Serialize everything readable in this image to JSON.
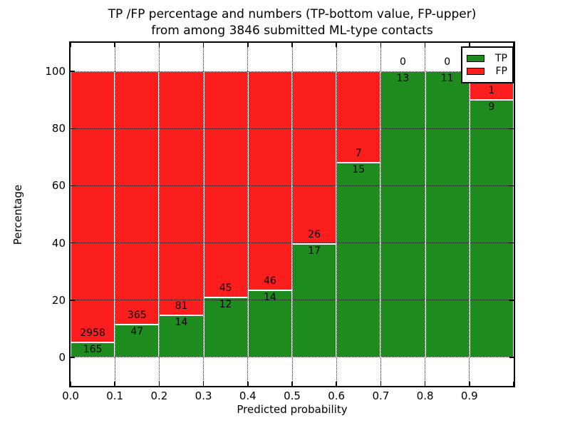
{
  "title_line1": "TP /FP percentage and numbers (TP-bottom value, FP-upper)",
  "title_line2": "from among 3846 submitted ML-type contacts",
  "legend": {
    "items": [
      {
        "label": "TP",
        "color": "#1e8b1e"
      },
      {
        "label": "FP",
        "color": "#fc1d1d"
      }
    ]
  },
  "chart_data": {
    "type": "bar",
    "subtype": "stacked-percentage",
    "title": "TP /FP percentage and numbers (TP-bottom value, FP-upper) from among 3846 submitted ML-type contacts",
    "xlabel": "Predicted probability",
    "ylabel": "Percentage",
    "xlim": [
      0.0,
      1.0
    ],
    "ylim": [
      -10,
      110
    ],
    "grid": true,
    "legend_position": "upper right",
    "bin_width": 0.1,
    "categories": [
      "0.0-0.1",
      "0.1-0.2",
      "0.2-0.3",
      "0.3-0.4",
      "0.4-0.5",
      "0.5-0.6",
      "0.6-0.7",
      "0.7-0.8",
      "0.8-0.9",
      "0.9-1.0"
    ],
    "bin_starts": [
      0.0,
      0.1,
      0.2,
      0.3,
      0.4,
      0.5,
      0.6,
      0.7,
      0.8,
      0.9
    ],
    "series": [
      {
        "name": "TP",
        "color": "#1e8b1e",
        "position": "bottom",
        "values": [
          165,
          47,
          14,
          12,
          14,
          17,
          15,
          13,
          11,
          9
        ]
      },
      {
        "name": "FP",
        "color": "#fc1d1d",
        "position": "top",
        "values": [
          2958,
          365,
          81,
          45,
          46,
          26,
          7,
          0,
          0,
          1
        ]
      }
    ],
    "tp_percent_of_bin": [
      5.3,
      11.4,
      14.7,
      21.1,
      23.3,
      39.5,
      68.2,
      100.0,
      100.0,
      90.0
    ],
    "x_tick_labels": [
      "0.0",
      "0.1",
      "0.2",
      "0.3",
      "0.4",
      "0.5",
      "0.6",
      "0.7",
      "0.8",
      "0.9"
    ],
    "x_tick_values": [
      0.0,
      0.1,
      0.2,
      0.3,
      0.4,
      0.5,
      0.6,
      0.7,
      0.8,
      0.9
    ],
    "x_gridlines": [
      0.1,
      0.2,
      0.3,
      0.4,
      0.5,
      0.6,
      0.7,
      0.8,
      0.9
    ],
    "y_ticks": [
      0,
      20,
      40,
      60,
      80,
      100
    ],
    "y_tick_labels": [
      "0",
      "20",
      "40",
      "60",
      "80",
      "100"
    ]
  }
}
